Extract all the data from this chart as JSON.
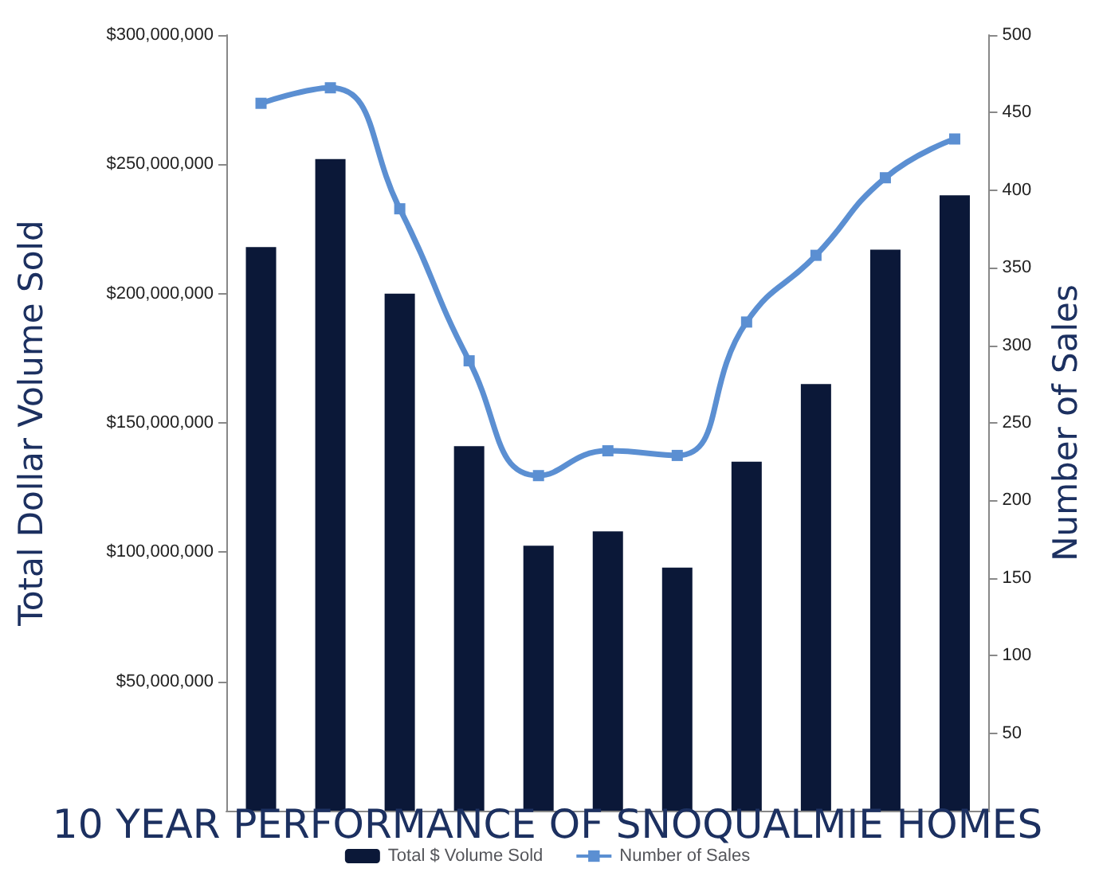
{
  "chart_data": {
    "type": "bar",
    "title": "10 YEAR PERFORMANCE OF SNOQUALMIE HOMES",
    "ylabel": "Total Dollar Volume Sold",
    "y2label": "Number of Sales",
    "categories": [
      null,
      null,
      null,
      null,
      null,
      null,
      null,
      null,
      null,
      null,
      null
    ],
    "series": [
      {
        "name": "Total $ Volume Sold",
        "color": "#0b1838",
        "values": [
          218000000,
          252000000,
          200000000,
          141000000,
          102500000,
          108000000,
          94000000,
          135000000,
          165000000,
          217000000,
          238000000
        ]
      },
      {
        "name": "Number of Sales",
        "type": "line",
        "axis": "y2",
        "color": "#5b8fd2",
        "values": [
          456,
          466,
          388,
          290,
          216,
          232,
          229,
          315,
          358,
          408,
          433
        ]
      }
    ],
    "ylim": [
      0,
      300000000
    ],
    "yticks": [
      {
        "value": 50000000,
        "label": "$50,000,000"
      },
      {
        "value": 100000000,
        "label": "$100,000,000"
      },
      {
        "value": 150000000,
        "label": "$150,000,000"
      },
      {
        "value": 200000000,
        "label": "$200,000,000"
      },
      {
        "value": 250000000,
        "label": "$250,000,000"
      },
      {
        "value": 300000000,
        "label": "$300,000,000"
      }
    ],
    "y2lim": [
      0,
      500
    ],
    "y2ticks": [
      50,
      100,
      150,
      200,
      250,
      300,
      350,
      400,
      450,
      500
    ],
    "grid": false,
    "legend": "bottom",
    "marker": "square"
  }
}
